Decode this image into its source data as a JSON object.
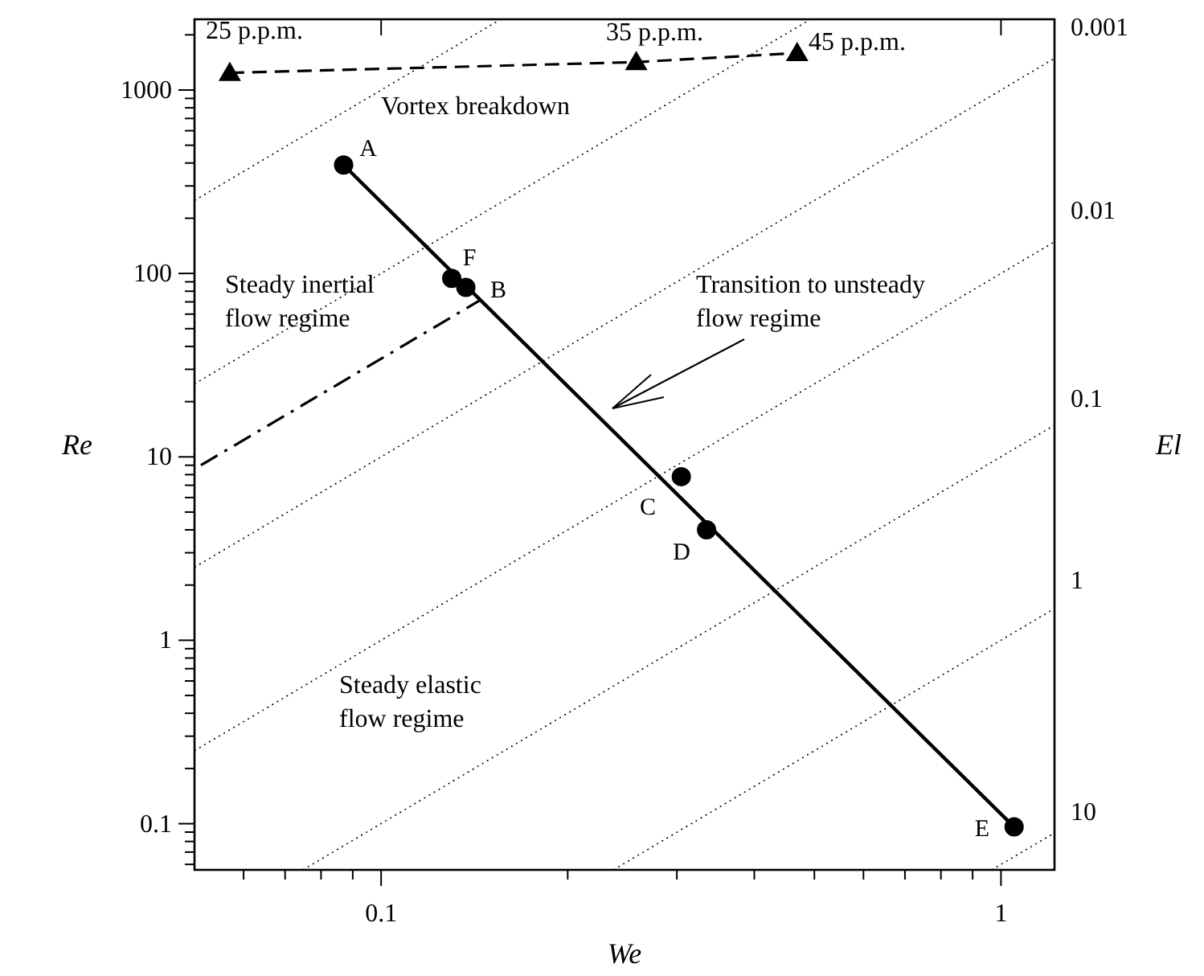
{
  "chart_data": {
    "type": "scatter",
    "xlabel": "We",
    "ylabel": "Re",
    "y2label": "El",
    "log": "xy",
    "xlim": [
      0.05,
      1.22
    ],
    "ylim": [
      0.056,
      2430
    ],
    "xticks": [
      {
        "value": 0.06,
        "label": null
      },
      {
        "value": 0.07,
        "label": null
      },
      {
        "value": 0.08,
        "label": null
      },
      {
        "value": 0.09,
        "label": null
      },
      0.1,
      {
        "value": 0.2,
        "label": null
      },
      {
        "value": 0.3,
        "label": null
      },
      {
        "value": 0.4,
        "label": null
      },
      {
        "value": 0.5,
        "label": null
      },
      {
        "value": 0.6,
        "label": null
      },
      {
        "value": 0.7,
        "label": null
      },
      {
        "value": 0.8,
        "label": null
      },
      {
        "value": 0.9,
        "label": null
      },
      1
    ],
    "yticks": [
      {
        "value": 0.06,
        "label": null
      },
      {
        "value": 0.07,
        "label": null
      },
      {
        "value": 0.08,
        "label": null
      },
      {
        "value": 0.09,
        "label": null
      },
      0.1,
      {
        "value": 0.2,
        "label": null
      },
      {
        "value": 0.3,
        "label": null
      },
      {
        "value": 0.4,
        "label": null
      },
      {
        "value": 0.5,
        "label": null
      },
      {
        "value": 0.6,
        "label": null
      },
      {
        "value": 0.7,
        "label": null
      },
      {
        "value": 0.8,
        "label": null
      },
      {
        "value": 0.9,
        "label": null
      },
      1,
      {
        "value": 2,
        "label": null
      },
      {
        "value": 3,
        "label": null
      },
      {
        "value": 4,
        "label": null
      },
      {
        "value": 5,
        "label": null
      },
      {
        "value": 6,
        "label": null
      },
      {
        "value": 7,
        "label": null
      },
      {
        "value": 8,
        "label": null
      },
      {
        "value": 9,
        "label": null
      },
      10,
      {
        "value": 20,
        "label": null
      },
      {
        "value": 30,
        "label": null
      },
      {
        "value": 40,
        "label": null
      },
      {
        "value": 50,
        "label": null
      },
      {
        "value": 60,
        "label": null
      },
      {
        "value": 70,
        "label": null
      },
      {
        "value": 80,
        "label": null
      },
      {
        "value": 90,
        "label": null
      },
      100,
      {
        "value": 200,
        "label": null
      },
      {
        "value": 300,
        "label": null
      },
      {
        "value": 400,
        "label": null
      },
      {
        "value": 500,
        "label": null
      },
      {
        "value": 600,
        "label": null
      },
      {
        "value": 700,
        "label": null
      },
      {
        "value": 800,
        "label": null
      },
      {
        "value": 900,
        "label": null
      },
      1000,
      {
        "value": 2000,
        "label": null
      }
    ],
    "grid": false,
    "series": [
      {
        "type": "line",
        "color": "#000000",
        "line_style": "dotted",
        "marker": "none",
        "x": [
          0.05,
          0.156
        ],
        "values": [
          250,
          2430
        ]
      },
      {
        "type": "line",
        "color": "#000000",
        "line_style": "dotted",
        "marker": "none",
        "x": [
          0.05,
          0.493
        ],
        "values": [
          25,
          2430
        ]
      },
      {
        "type": "line",
        "color": "#000000",
        "line_style": "dotted",
        "marker": "none",
        "x": [
          0.05,
          1.22
        ],
        "values": [
          2.5,
          1488
        ]
      },
      {
        "type": "line",
        "color": "#000000",
        "line_style": "dotted",
        "marker": "none",
        "x": [
          0.05,
          1.22
        ],
        "values": [
          0.25,
          148.8
        ]
      },
      {
        "type": "line",
        "color": "#000000",
        "line_style": "dotted",
        "marker": "none",
        "x": [
          0.0748,
          1.22
        ],
        "values": [
          0.056,
          14.9
        ]
      },
      {
        "type": "line",
        "color": "#000000",
        "line_style": "dotted",
        "marker": "none",
        "x": [
          0.237,
          1.22
        ],
        "values": [
          0.056,
          1.49
        ]
      },
      {
        "type": "line",
        "color": "#000000",
        "line_style": "dotted",
        "marker": "none",
        "x": [
          0.966,
          1.22
        ],
        "values": [
          0.056,
          0.089
        ]
      },
      {
        "type": "line",
        "color": "#000000",
        "line_style": "solid",
        "marker": "none",
        "x": [
          0.087,
          1.05
        ],
        "values": [
          390,
          0.096
        ]
      },
      {
        "type": "line",
        "color": "#000000",
        "line_style": "dashdot",
        "marker": "none",
        "x": [
          0.0512,
          0.145
        ],
        "values": [
          9,
          72
        ]
      },
      {
        "type": "line",
        "color": "#000000",
        "line_style": "dashed",
        "marker": "triangle",
        "x": [
          0.057,
          0.258,
          0.469
        ],
        "values": [
          1240,
          1420,
          1590
        ]
      },
      {
        "color": "#000000",
        "marker": "circle",
        "x": [
          0.087,
          0.13,
          0.137,
          0.305,
          0.335,
          1.05
        ],
        "values": [
          390,
          94,
          84,
          7.8,
          4.0,
          0.096
        ]
      }
    ],
    "annotations": [
      "Vortex breakdown",
      "Steady inertial\nflow regime",
      "Transition to unsteady\nflow regime",
      "Steady elastic\nflow regime",
      "25 p.p.m.",
      "35 p.p.m.",
      "45 p.p.m.",
      "A",
      "F",
      "B",
      "C",
      "D",
      "E",
      "0.001",
      "0.01",
      "0.1",
      "1",
      "10"
    ]
  }
}
